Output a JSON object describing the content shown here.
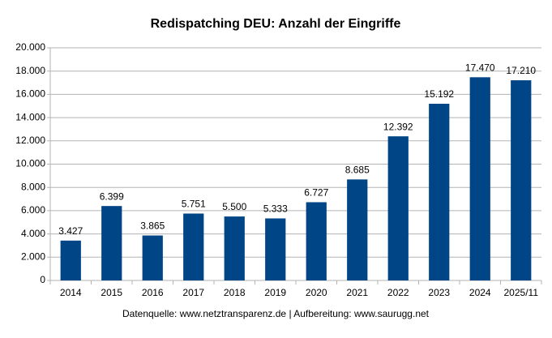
{
  "chart_data": {
    "type": "bar",
    "title": "Redispatching DEU: Anzahl der Eingriffe",
    "categories": [
      "2014",
      "2015",
      "2016",
      "2017",
      "2018",
      "2019",
      "2020",
      "2021",
      "2022",
      "2023",
      "2024",
      "2025/11"
    ],
    "values": [
      3427,
      6399,
      3865,
      5751,
      5500,
      5333,
      6727,
      8685,
      12392,
      15192,
      17470,
      17210
    ],
    "value_labels": [
      "3.427",
      "6.399",
      "3.865",
      "5.751",
      "5.500",
      "5.333",
      "6.727",
      "8.685",
      "12.392",
      "15.192",
      "17.470",
      "17.210"
    ],
    "color": "#004586",
    "ylim": [
      0,
      20000
    ],
    "yticks": [
      0,
      {
        "value": 2000,
        "label": "2.000"
      },
      {
        "value": 4000,
        "label": "4.000"
      },
      {
        "value": 6000,
        "label": "6.000"
      },
      {
        "value": 8000,
        "label": "8.000"
      },
      {
        "value": 10000,
        "label": "10.000"
      },
      {
        "value": 12000,
        "label": "12.000"
      },
      {
        "value": 14000,
        "label": "14.000"
      },
      {
        "value": 16000,
        "label": "16.000"
      },
      {
        "value": 18000,
        "label": "18.000"
      },
      {
        "value": 20000,
        "label": "20.000"
      }
    ],
    "grid": true,
    "source": "Datenquelle: www.netztransparenz.de  | Aufbereitung: www.saurugg.net"
  }
}
